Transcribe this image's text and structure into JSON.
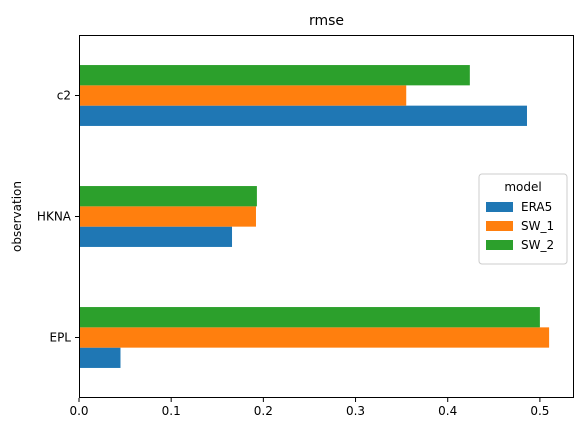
{
  "chart_data": {
    "type": "bar",
    "orientation": "horizontal",
    "title": "rmse",
    "xlabel": "",
    "ylabel": "observation",
    "categories": [
      "EPL",
      "HKNA",
      "c2"
    ],
    "series": [
      {
        "name": "ERA5",
        "values": [
          0.045,
          0.166,
          0.486
        ]
      },
      {
        "name": "SW_1",
        "values": [
          0.51,
          0.192,
          0.355
        ]
      },
      {
        "name": "SW_2",
        "values": [
          0.5,
          0.193,
          0.424
        ]
      }
    ],
    "xlim": [
      0,
      0.537
    ],
    "xticks": [
      0.0,
      0.1,
      0.2,
      0.3,
      0.4,
      0.5
    ],
    "xtick_labels": [
      "0.0",
      "0.1",
      "0.2",
      "0.3",
      "0.4",
      "0.5"
    ],
    "grid": false,
    "legend": {
      "title": "model",
      "placement": "center-right",
      "entries": [
        "ERA5",
        "SW_1",
        "SW_2"
      ]
    },
    "colors": {
      "ERA5": "#1f77b4",
      "SW_1": "#ff7f0e",
      "SW_2": "#2ca02c",
      "axis": "#000000"
    }
  }
}
